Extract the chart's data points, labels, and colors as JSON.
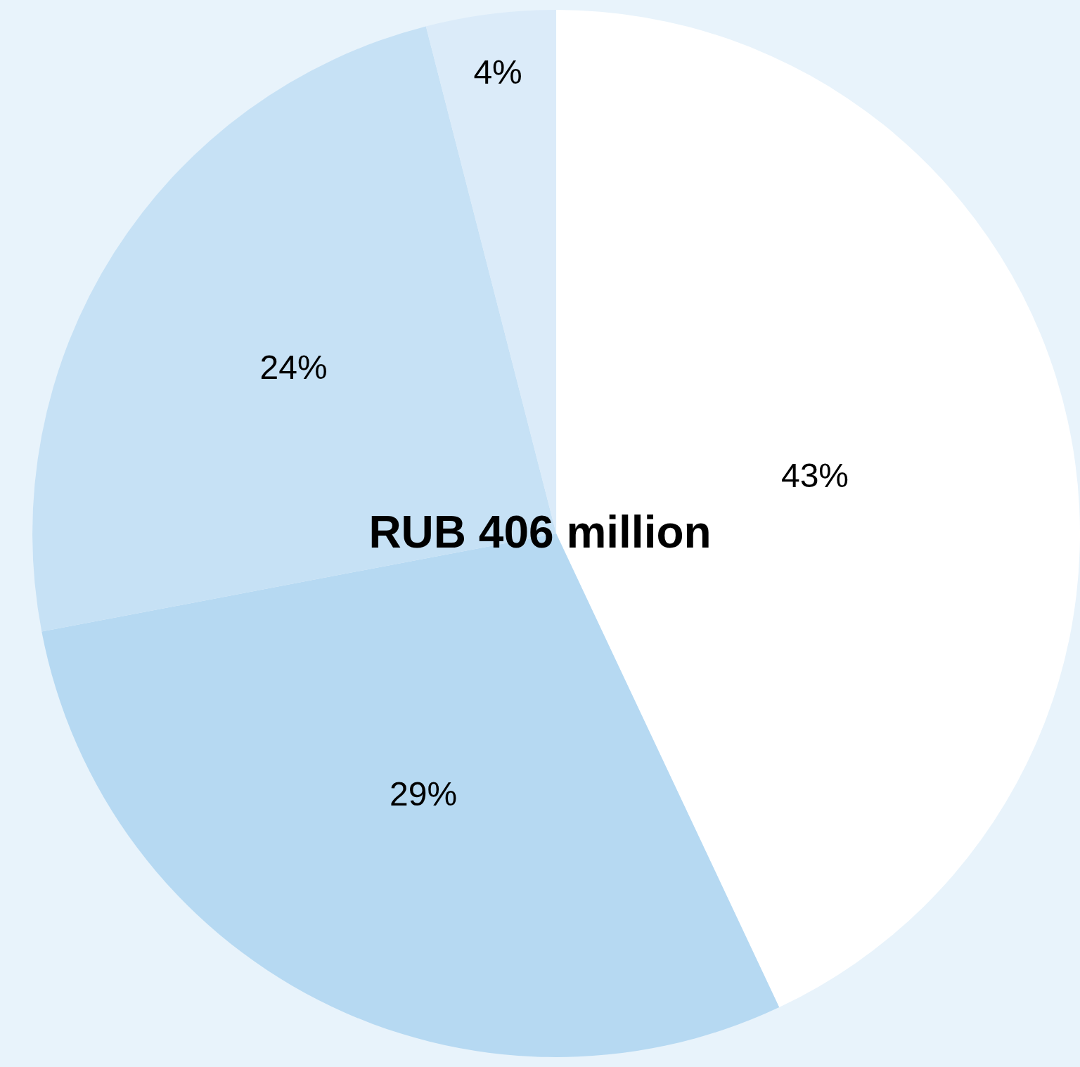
{
  "chart_data": {
    "type": "pie",
    "categories": [
      null,
      null,
      null,
      null
    ],
    "values": [
      43,
      29,
      24,
      4
    ],
    "colors": [
      "#ffffff",
      "#b6d9f2",
      "#c6e1f5",
      "#dbebf9"
    ],
    "value_labels": [
      "43%",
      "29%",
      "24%",
      "4%"
    ],
    "annotations": [
      "RUB 406 million"
    ],
    "legend": false
  }
}
